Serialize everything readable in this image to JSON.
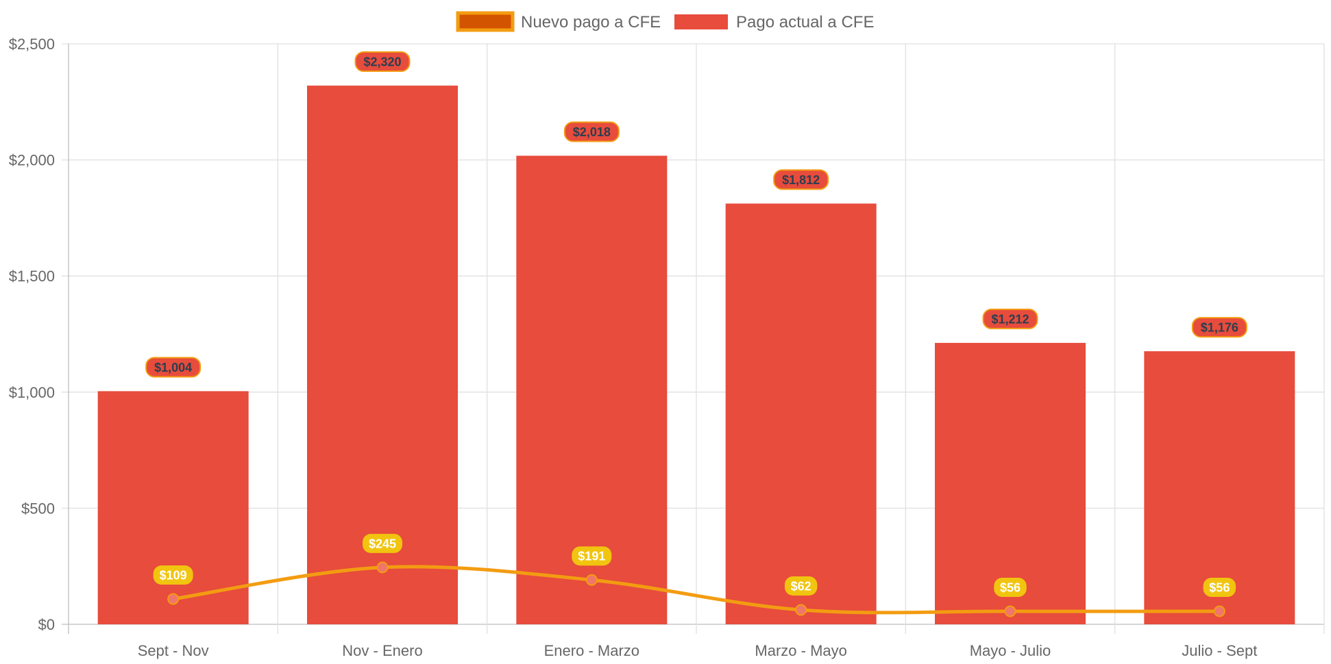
{
  "chart_data": {
    "type": "bar",
    "categories": [
      "Sept - Nov",
      "Nov - Enero",
      "Enero - Marzo",
      "Marzo - Mayo",
      "Mayo - Julio",
      "Julio - Sept"
    ],
    "series": [
      {
        "name": "Nuevo pago a CFE",
        "type": "line",
        "values": [
          109,
          245,
          191,
          62,
          56,
          56
        ],
        "labels": [
          "$109",
          "$245",
          "$191",
          "$62",
          "$56",
          "$56"
        ],
        "color": "#f39c12",
        "label_bg": "#f1c40f"
      },
      {
        "name": "Pago actual a CFE",
        "type": "bar",
        "values": [
          1004,
          2320,
          2018,
          1812,
          1212,
          1176
        ],
        "labels": [
          "$1,004",
          "$2,320",
          "$2,018",
          "$1,812",
          "$1,212",
          "$1,176"
        ],
        "color": "#e74c3c"
      }
    ],
    "ylim": [
      0,
      2500
    ],
    "yticks": [
      0,
      500,
      1000,
      1500,
      2000,
      2500
    ],
    "ytick_labels": [
      "$0",
      "$500",
      "$1,000",
      "$1,500",
      "$2,000",
      "$2,500"
    ],
    "grid": true,
    "legend_position": "top",
    "legend": [
      {
        "label": "Nuevo pago a CFE",
        "fill": "#d35400",
        "stroke": "#f39c12"
      },
      {
        "label": "Pago actual a CFE",
        "fill": "#e74c3c",
        "stroke": "#e74c3c"
      }
    ]
  }
}
